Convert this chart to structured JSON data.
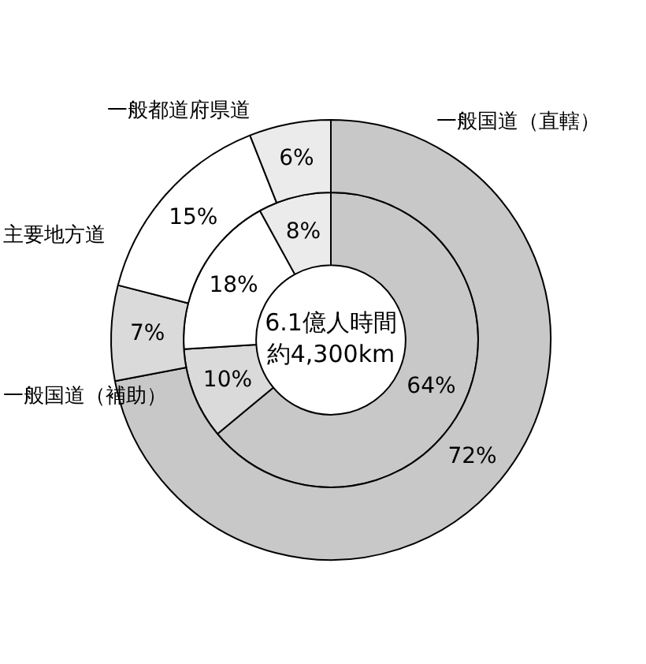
{
  "chart_data": {
    "type": "donut",
    "categories": [
      "一般国道（直轄）",
      "一般国道（補助）",
      "主要地方道",
      "一般都道府県道"
    ],
    "colors": [
      "#c8c8c8",
      "#dadada",
      "#ffffff",
      "#ebebeb"
    ],
    "series": [
      {
        "values": [
          72,
          7,
          15,
          6
        ],
        "value_labels": [
          "72%",
          "7%",
          "15%",
          "6%"
        ]
      },
      {
        "values": [
          64,
          10,
          18,
          8
        ],
        "value_labels": [
          "64%",
          "10%",
          "18%",
          "8%"
        ]
      }
    ],
    "annotations": [
      "6.1億人時間",
      "約4,300km"
    ]
  }
}
